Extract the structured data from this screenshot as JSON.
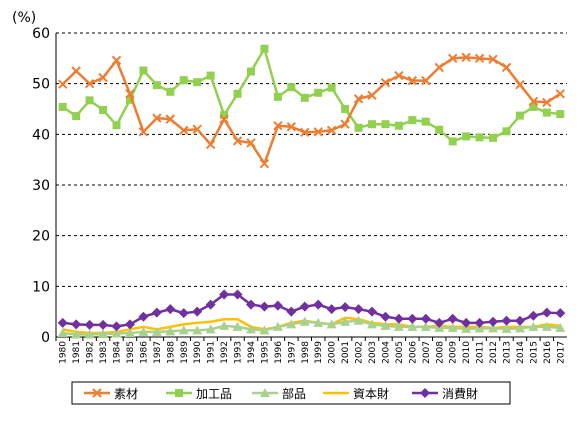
{
  "chart_data": {
    "type": "line",
    "unit_label": "(%)",
    "ylim": [
      0,
      60
    ],
    "yticks": [
      0,
      10,
      20,
      30,
      40,
      50,
      60
    ],
    "grid": "horizontal dashed",
    "legend_position": "bottom",
    "x": [
      "1980",
      "1981",
      "1982",
      "1983",
      "1984",
      "1985",
      "1986",
      "1987",
      "1988",
      "1989",
      "1990",
      "1991",
      "1992",
      "1993",
      "1994",
      "1995",
      "1996",
      "1997",
      "1998",
      "1999",
      "2000",
      "2001",
      "2002",
      "2003",
      "2004",
      "2005",
      "2006",
      "2007",
      "2008",
      "2009",
      "2010",
      "2011",
      "2012",
      "2013",
      "2014",
      "2015",
      "2016",
      "2017"
    ],
    "series": [
      {
        "name": "素材",
        "color": "#ed7d31",
        "marker": "x",
        "values": [
          49.9,
          52.5,
          50.0,
          51.2,
          54.6,
          48.0,
          40.5,
          43.2,
          43.0,
          40.8,
          41.0,
          38.0,
          43.0,
          38.7,
          38.3,
          34.2,
          41.7,
          41.5,
          40.4,
          40.5,
          40.8,
          42.0,
          47.0,
          47.7,
          50.2,
          51.6,
          50.6,
          50.6,
          53.2,
          55.0,
          55.2,
          55.0,
          54.8,
          53.2,
          49.8,
          46.5,
          46.3,
          48.0
        ]
      },
      {
        "name": "加工品",
        "color": "#92d050",
        "marker": "square",
        "values": [
          45.4,
          43.6,
          46.7,
          44.8,
          41.8,
          46.8,
          52.6,
          49.7,
          48.4,
          50.7,
          50.3,
          51.6,
          43.8,
          48.0,
          52.4,
          56.9,
          47.4,
          49.3,
          47.2,
          48.2,
          49.2,
          45.0,
          41.3,
          42.0,
          42.0,
          41.7,
          42.8,
          42.5,
          40.9,
          38.6,
          39.6,
          39.4,
          39.3,
          40.6,
          43.7,
          45.4,
          44.3,
          44.0
        ]
      },
      {
        "name": "部品",
        "color": "#a9d18e",
        "marker": "triangle",
        "values": [
          0.8,
          0.5,
          0.5,
          0.6,
          0.7,
          0.8,
          1.0,
          1.0,
          1.1,
          1.3,
          1.3,
          1.5,
          2.2,
          2.0,
          1.5,
          1.3,
          2.0,
          2.5,
          3.0,
          2.8,
          2.5,
          3.0,
          3.2,
          2.5,
          2.2,
          2.0,
          2.0,
          2.0,
          1.8,
          1.8,
          1.6,
          1.7,
          1.7,
          1.6,
          1.7,
          2.0,
          2.0,
          1.8
        ]
      },
      {
        "name": "資本財",
        "color": "#ffc000",
        "marker": "none",
        "values": [
          1.5,
          1.0,
          0.8,
          0.8,
          1.0,
          1.5,
          2.0,
          1.5,
          2.0,
          2.5,
          2.8,
          3.0,
          3.5,
          3.5,
          2.0,
          1.5,
          2.0,
          2.8,
          3.2,
          2.8,
          2.5,
          3.8,
          3.5,
          2.8,
          2.5,
          2.5,
          2.0,
          2.0,
          2.2,
          2.0,
          2.0,
          2.0,
          1.8,
          2.0,
          2.0,
          2.0,
          2.5,
          2.2
        ]
      },
      {
        "name": "消費財",
        "color": "#7030a0",
        "marker": "diamond",
        "values": [
          2.8,
          2.5,
          2.4,
          2.4,
          2.1,
          2.5,
          4.0,
          4.8,
          5.5,
          4.7,
          5.0,
          6.4,
          8.4,
          8.4,
          6.4,
          6.0,
          6.2,
          5.0,
          6.0,
          6.4,
          5.5,
          5.9,
          5.5,
          5.0,
          4.0,
          3.6,
          3.6,
          3.6,
          2.8,
          3.6,
          2.8,
          2.8,
          3.0,
          3.2,
          3.2,
          4.2,
          4.8,
          4.7
        ]
      }
    ]
  }
}
